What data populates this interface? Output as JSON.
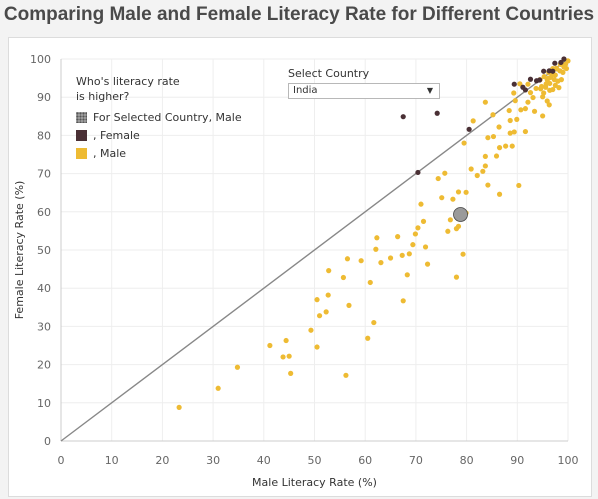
{
  "chart_data": {
    "type": "scatter",
    "title": "Comparing Male and Female Literacy Rate for Different Countries",
    "xlabel": "Male Literacy Rate (%)",
    "ylabel": "Female Literacy Rate (%)",
    "xlim": [
      0,
      100
    ],
    "ylim": [
      0,
      100
    ],
    "xticks": [
      0,
      10,
      20,
      30,
      40,
      50,
      60,
      70,
      80,
      90,
      100
    ],
    "yticks": [
      0,
      10,
      20,
      30,
      40,
      50,
      60,
      70,
      80,
      90,
      100
    ],
    "reference_line": "y = x",
    "colors": {
      "male": "#eebb33",
      "female": "#4a3035",
      "selected": "#9a9a9a",
      "line": "#888888"
    },
    "series": [
      {
        "name": "Male",
        "points": [
          [
            23.3,
            8.8
          ],
          [
            31,
            13.8
          ],
          [
            34.8,
            19.3
          ],
          [
            41.2,
            25
          ],
          [
            43.8,
            22
          ],
          [
            44.4,
            26.3
          ],
          [
            45,
            22.2
          ],
          [
            45.3,
            17.7
          ],
          [
            49.3,
            29
          ],
          [
            50.5,
            37
          ],
          [
            50.5,
            24.6
          ],
          [
            51,
            32.8
          ],
          [
            52.3,
            33.8
          ],
          [
            52.7,
            38.2
          ],
          [
            52.8,
            44.6
          ],
          [
            55.7,
            42.8
          ],
          [
            56.2,
            17.2
          ],
          [
            56.5,
            47.7
          ],
          [
            56.8,
            35.5
          ],
          [
            59.2,
            47.2
          ],
          [
            60.5,
            26.9
          ],
          [
            61,
            41.5
          ],
          [
            61.7,
            31
          ],
          [
            62.1,
            50.2
          ],
          [
            62.3,
            53.2
          ],
          [
            63.1,
            46.7
          ],
          [
            65,
            47.9
          ],
          [
            66.4,
            53.5
          ],
          [
            67.3,
            48.6
          ],
          [
            67.5,
            36.7
          ],
          [
            68.3,
            43.5
          ],
          [
            68.7,
            49
          ],
          [
            69.4,
            51.4
          ],
          [
            69.9,
            54.2
          ],
          [
            70.4,
            55.8
          ],
          [
            71,
            62
          ],
          [
            71.5,
            57.5
          ],
          [
            71.9,
            50.8
          ],
          [
            72.3,
            46.3
          ],
          [
            74.4,
            68.7
          ],
          [
            75.1,
            63.7
          ],
          [
            75.7,
            70.1
          ],
          [
            76.3,
            54.9
          ],
          [
            76.8,
            57.9
          ],
          [
            77.3,
            63.3
          ],
          [
            78,
            42.9
          ],
          [
            78,
            55.6
          ],
          [
            78.4,
            56.2
          ],
          [
            78.9,
            60
          ],
          [
            78.4,
            65.2
          ],
          [
            79.3,
            48.9
          ],
          [
            79.5,
            78
          ],
          [
            79.9,
            65.1
          ],
          [
            79.9,
            59.7
          ],
          [
            80.9,
            71.2
          ],
          [
            81.3,
            83.8
          ],
          [
            82.1,
            69.5
          ],
          [
            83.2,
            70.6
          ],
          [
            83.7,
            74.5
          ],
          [
            83.7,
            72
          ],
          [
            83.7,
            88.7
          ],
          [
            84.2,
            79.4
          ],
          [
            84.2,
            67
          ],
          [
            85.2,
            85.4
          ],
          [
            85.3,
            79.7
          ],
          [
            85.9,
            74.6
          ],
          [
            86.4,
            82.2
          ],
          [
            86.5,
            76.8
          ],
          [
            86.5,
            64.6
          ],
          [
            87.7,
            77.2
          ],
          [
            88.4,
            86.5
          ],
          [
            88.6,
            83.9
          ],
          [
            88.6,
            80.6
          ],
          [
            89,
            77.2
          ],
          [
            89.3,
            91.1
          ],
          [
            89.4,
            80.9
          ],
          [
            89.6,
            89.1
          ],
          [
            89.9,
            84.2
          ],
          [
            90.3,
            66.9
          ],
          [
            90.5,
            93.5
          ],
          [
            90.7,
            86.7
          ],
          [
            91.6,
            87
          ],
          [
            91.6,
            81
          ],
          [
            92.1,
            88.7
          ],
          [
            92.1,
            93.4
          ],
          [
            92.6,
            91.2
          ],
          [
            93.1,
            89.9
          ],
          [
            93.4,
            86.3
          ],
          [
            93.7,
            92.3
          ],
          [
            94.5,
            94.6
          ],
          [
            94.6,
            92.2
          ],
          [
            95,
            85.1
          ],
          [
            95,
            90.1
          ],
          [
            95.2,
            91.1
          ],
          [
            95.3,
            95.4
          ],
          [
            95.6,
            92.6
          ],
          [
            95.9,
            89
          ],
          [
            95.9,
            94.6
          ],
          [
            96.2,
            96.5
          ],
          [
            96.3,
            88
          ],
          [
            96.4,
            93.6
          ],
          [
            96.4,
            91.8
          ],
          [
            96.5,
            96.6
          ],
          [
            96.6,
            95.2
          ],
          [
            97,
            97.5
          ],
          [
            97,
            92
          ],
          [
            97.3,
            94.6
          ],
          [
            97.5,
            93.1
          ],
          [
            97.7,
            97.6
          ],
          [
            97.8,
            97.4
          ],
          [
            98.2,
            92.5
          ],
          [
            98.5,
            98.6
          ],
          [
            98.7,
            94.6
          ],
          [
            99,
            96.5
          ],
          [
            99.5,
            98.6
          ],
          [
            99.7,
            97.5
          ],
          [
            100,
            99.5
          ],
          [
            96.8,
            96.4
          ],
          [
            97.5,
            95.8
          ],
          [
            98.4,
            96.9
          ],
          [
            99.2,
            97.9
          ],
          [
            98,
            94.2
          ],
          [
            97.1,
            96
          ],
          [
            96.2,
            95
          ],
          [
            95.7,
            93.5
          ],
          [
            94.8,
            92.8
          ]
        ]
      },
      {
        "name": "Female",
        "points": [
          [
            67.5,
            84.9
          ],
          [
            70.4,
            70.3
          ],
          [
            74.2,
            85.8
          ],
          [
            80.5,
            81.6
          ],
          [
            89.4,
            93.4
          ],
          [
            91.1,
            92.6
          ],
          [
            91.6,
            91.9
          ],
          [
            92.6,
            94.7
          ],
          [
            93.8,
            94.3
          ],
          [
            94.4,
            94.5
          ],
          [
            95.2,
            96.8
          ],
          [
            96.3,
            96.9
          ],
          [
            97.4,
            98.9
          ],
          [
            98.6,
            99.1
          ],
          [
            99.2,
            100
          ],
          [
            97,
            96.8
          ]
        ]
      },
      {
        "name": "For Selected Country, Male",
        "points": [
          [
            78.8,
            59.3
          ]
        ]
      }
    ]
  },
  "legend": {
    "title_line1": "Who's literacy rate",
    "title_line2": "is higher?",
    "selected_label": "For Selected Country, Male",
    "female_label": ", Female",
    "male_label": ", Male"
  },
  "selector": {
    "label": "Select Country",
    "value": "India",
    "caret": "▼"
  }
}
